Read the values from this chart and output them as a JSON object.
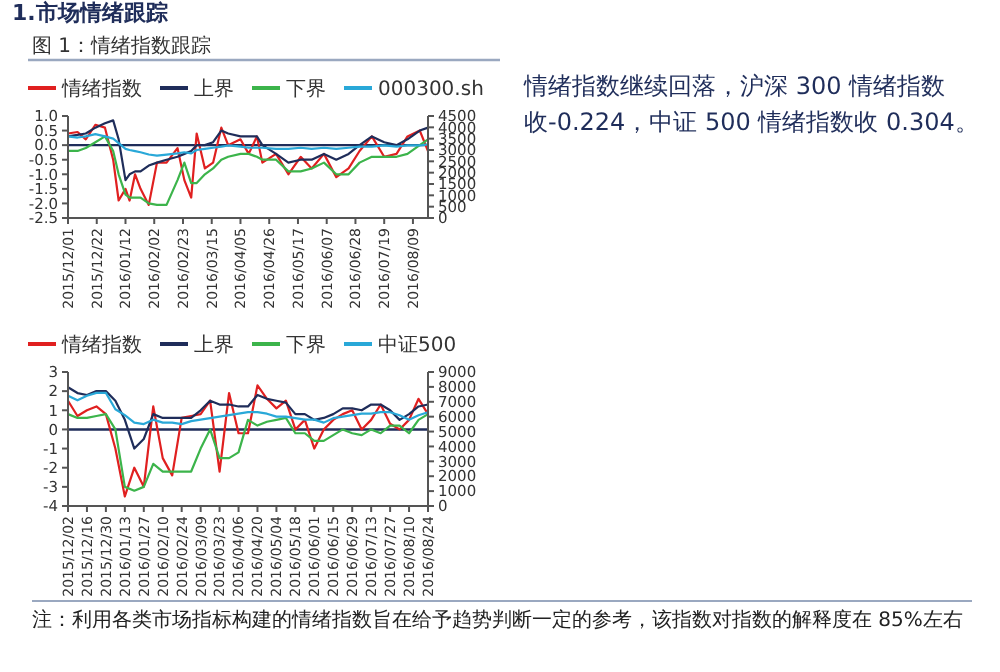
{
  "chart_data": [
    {
      "type": "other",
      "title": "1.市场情绪跟踪"
    },
    {
      "type": "line",
      "title": "图 1：情绪指数跟踪",
      "legend": "top",
      "grid": false,
      "marker": "none",
      "line_style": "solid",
      "x": [
        "2015-12-01",
        "2015-12-08",
        "2015-12-14",
        "2015-12-21",
        "2015-12-28",
        "2016-01-03",
        "2016-01-07",
        "2016-01-12",
        "2016-01-15",
        "2016-01-19",
        "2016-01-23",
        "2016-01-29",
        "2016-02-04",
        "2016-02-11",
        "2016-02-19",
        "2016-02-24",
        "2016-02-29",
        "2016-03-04",
        "2016-03-10",
        "2016-03-16",
        "2016-03-22",
        "2016-03-27",
        "2016-04-05",
        "2016-04-11",
        "2016-04-17",
        "2016-04-21",
        "2016-05-01",
        "2016-05-10",
        "2016-05-19",
        "2016-05-27",
        "2016-06-05",
        "2016-06-14",
        "2016-06-23",
        "2016-07-01",
        "2016-07-10",
        "2016-07-19",
        "2016-07-28",
        "2016-08-05",
        "2016-08-14",
        "2016-08-20"
      ],
      "xlim": [
        "2015-12-01",
        "2016-08-20"
      ],
      "xticks": [
        {
          "value": "2015-12-01",
          "label": "2015/12/01"
        },
        {
          "value": "2015-12-22",
          "label": "2015/12/22"
        },
        {
          "value": "2016-01-12",
          "label": "2016/01/12"
        },
        {
          "value": "2016-02-02",
          "label": "2016/02/02"
        },
        {
          "value": "2016-02-23",
          "label": "2016/02/23"
        },
        {
          "value": "2016-03-15",
          "label": "2016/03/15"
        },
        {
          "value": "2016-04-05",
          "label": "2016/04/05"
        },
        {
          "value": "2016-04-26",
          "label": "2016/04/26"
        },
        {
          "value": "2016-05-17",
          "label": "2016/05/17"
        },
        {
          "value": "2016-06-07",
          "label": "2016/06/07"
        },
        {
          "value": "2016-06-28",
          "label": "2016/06/28"
        },
        {
          "value": "2016-07-19",
          "label": "2016/07/19"
        },
        {
          "value": "2016-08-09",
          "label": "2016/08/09"
        }
      ],
      "ylim": [
        -2.5,
        1
      ],
      "yticks": [
        {
          "value": -2.5,
          "label": "-2.5"
        },
        {
          "value": -2,
          "label": "-2.0"
        },
        {
          "value": -1.5,
          "label": "-1.5"
        },
        {
          "value": -1,
          "label": "-1.0"
        },
        {
          "value": -0.5,
          "label": "-0.5"
        },
        {
          "value": 0,
          "label": "0.0"
        },
        {
          "value": 0.5,
          "label": "0.5"
        },
        {
          "value": 1,
          "label": "1.0"
        }
      ],
      "y2lim": [
        0,
        4500
      ],
      "y2ticks": [
        0,
        500,
        1000,
        1500,
        2000,
        2500,
        3000,
        3500,
        4000,
        4500
      ],
      "ref_lines": [
        {
          "axis": "y",
          "value": 0,
          "color": "#1f2d5a"
        }
      ],
      "series": [
        {
          "name": "情绪指数",
          "color": "#e02020",
          "values": [
            0.4,
            0.45,
            0.2,
            0.7,
            0.6,
            -0.5,
            -1.9,
            -1.5,
            -1.9,
            -1.0,
            -1.5,
            -2.05,
            -0.6,
            -0.6,
            -0.1,
            -1.2,
            -1.8,
            0.4,
            -0.8,
            -0.6,
            0.6,
            0.0,
            0.2,
            -0.3,
            0.3,
            -0.6,
            -0.3,
            -1.0,
            -0.4,
            -0.8,
            -0.3,
            -1.1,
            -0.8,
            -0.2,
            0.3,
            -0.4,
            -0.3,
            0.3,
            0.5,
            -0.2
          ]
        },
        {
          "name": "上界",
          "color": "#1f2d5a",
          "values": [
            0.3,
            0.35,
            0.4,
            0.6,
            0.75,
            0.85,
            0.2,
            -1.2,
            -1.0,
            -0.9,
            -0.9,
            -0.7,
            -0.6,
            -0.5,
            -0.4,
            -0.3,
            -0.2,
            0.0,
            0.0,
            0.1,
            0.5,
            0.4,
            0.3,
            0.3,
            0.3,
            0.0,
            -0.3,
            -0.6,
            -0.5,
            -0.5,
            -0.3,
            -0.5,
            -0.3,
            0.0,
            0.3,
            0.1,
            0.0,
            0.2,
            0.5,
            0.6
          ]
        },
        {
          "name": "下界",
          "color": "#3cb44b",
          "values": [
            -0.2,
            -0.2,
            -0.1,
            0.1,
            0.3,
            -0.2,
            -1.0,
            -1.7,
            -1.8,
            -1.8,
            -1.8,
            -2.0,
            -2.05,
            -2.05,
            -1.2,
            -0.6,
            -1.3,
            -1.3,
            -1.0,
            -0.8,
            -0.5,
            -0.4,
            -0.3,
            -0.3,
            -0.4,
            -0.5,
            -0.5,
            -0.9,
            -0.9,
            -0.8,
            -0.6,
            -1.0,
            -1.0,
            -0.6,
            -0.4,
            -0.4,
            -0.4,
            -0.3,
            0.0,
            0.2
          ]
        },
        {
          "name": "000300.sh",
          "color": "#29a8d8",
          "axis": "y2",
          "values": [
            3600,
            3550,
            3600,
            3700,
            3600,
            3500,
            3300,
            3050,
            3000,
            2950,
            2900,
            2800,
            2750,
            2800,
            2850,
            2900,
            2850,
            3000,
            3050,
            3100,
            3150,
            3200,
            3150,
            3100,
            3100,
            3100,
            3050,
            3050,
            3100,
            3050,
            3100,
            3050,
            3100,
            3150,
            3150,
            3200,
            3150,
            3200,
            3200,
            3250
          ]
        }
      ]
    },
    {
      "type": "other",
      "annotations": [
        "情绪指数继续回落，沪深 300 情绪指数收-0.224，中证 500 情绪指数收 0.304。"
      ]
    },
    {
      "type": "line",
      "legend": "top",
      "grid": false,
      "marker": "none",
      "line_style": "solid",
      "x": [
        "2015-12-02",
        "2015-12-09",
        "2015-12-16",
        "2015-12-23",
        "2015-12-30",
        "2016-01-06",
        "2016-01-13",
        "2016-01-20",
        "2016-01-27",
        "2016-02-03",
        "2016-02-10",
        "2016-02-17",
        "2016-02-24",
        "2016-03-02",
        "2016-03-09",
        "2016-03-16",
        "2016-03-23",
        "2016-03-30",
        "2016-04-06",
        "2016-04-13",
        "2016-04-20",
        "2016-04-27",
        "2016-05-04",
        "2016-05-11",
        "2016-05-18",
        "2016-05-25",
        "2016-06-01",
        "2016-06-08",
        "2016-06-15",
        "2016-06-22",
        "2016-06-29",
        "2016-07-06",
        "2016-07-13",
        "2016-07-20",
        "2016-07-27",
        "2016-08-03",
        "2016-08-10",
        "2016-08-17",
        "2016-08-24"
      ],
      "xlim": [
        "2015-12-02",
        "2016-08-24"
      ],
      "xticks": [
        {
          "value": "2015-12-02",
          "label": "2015/12/02"
        },
        {
          "value": "2015-12-16",
          "label": "2015/12/16"
        },
        {
          "value": "2015-12-30",
          "label": "2015/12/30"
        },
        {
          "value": "2016-01-13",
          "label": "2016/01/13"
        },
        {
          "value": "2016-01-27",
          "label": "2016/01/27"
        },
        {
          "value": "2016-02-10",
          "label": "2016/02/10"
        },
        {
          "value": "2016-02-24",
          "label": "2016/02/24"
        },
        {
          "value": "2016-03-09",
          "label": "2016/03/09"
        },
        {
          "value": "2016-03-23",
          "label": "2016/03/23"
        },
        {
          "value": "2016-04-06",
          "label": "2016/04/06"
        },
        {
          "value": "2016-04-20",
          "label": "2016/04/20"
        },
        {
          "value": "2016-05-04",
          "label": "2016/05/04"
        },
        {
          "value": "2016-05-18",
          "label": "2016/05/18"
        },
        {
          "value": "2016-06-01",
          "label": "2016/06/01"
        },
        {
          "value": "2016-06-15",
          "label": "2016/06/15"
        },
        {
          "value": "2016-06-29",
          "label": "2016/06/29"
        },
        {
          "value": "2016-07-13",
          "label": "2016/07/13"
        },
        {
          "value": "2016-07-27",
          "label": "2016/07/27"
        },
        {
          "value": "2016-08-10",
          "label": "2016/08/10"
        },
        {
          "value": "2016-08-24",
          "label": "2016/08/24"
        }
      ],
      "ylim": [
        -4,
        3
      ],
      "yticks": [
        -4,
        -3,
        -2,
        -1,
        0,
        1,
        2,
        3
      ],
      "y2lim": [
        0,
        9000
      ],
      "y2ticks": [
        0,
        1000,
        2000,
        3000,
        4000,
        5000,
        6000,
        7000,
        8000,
        9000
      ],
      "ref_lines": [
        {
          "axis": "y",
          "value": 0,
          "color": "#1f2d5a"
        }
      ],
      "series": [
        {
          "name": "情绪指数",
          "color": "#e02020",
          "values": [
            1.5,
            0.7,
            1.0,
            1.2,
            0.8,
            -1.0,
            -3.5,
            -2.0,
            -3.0,
            1.2,
            -1.5,
            -2.4,
            0.6,
            0.7,
            0.8,
            1.5,
            -2.2,
            1.9,
            -0.2,
            -0.2,
            2.3,
            1.6,
            1.1,
            1.5,
            0.0,
            0.5,
            -1.0,
            0.0,
            0.5,
            0.8,
            1.0,
            0.0,
            0.5,
            1.3,
            0.3,
            0.0,
            0.5,
            1.6,
            0.8
          ]
        },
        {
          "name": "上界",
          "color": "#1f2d5a",
          "values": [
            2.2,
            1.9,
            1.8,
            2.0,
            2.0,
            1.5,
            0.5,
            -1.0,
            -0.5,
            0.8,
            0.6,
            0.6,
            0.6,
            0.6,
            1.0,
            1.5,
            1.3,
            1.3,
            1.2,
            1.2,
            1.8,
            1.6,
            1.5,
            1.4,
            0.8,
            0.8,
            0.5,
            0.6,
            0.8,
            1.1,
            1.1,
            1.0,
            1.3,
            1.3,
            1.0,
            0.5,
            0.8,
            1.2,
            1.3
          ]
        },
        {
          "name": "下界",
          "color": "#3cb44b",
          "values": [
            0.8,
            0.6,
            0.6,
            0.7,
            0.8,
            0.0,
            -3.0,
            -3.2,
            -3.0,
            -1.8,
            -2.2,
            -2.2,
            -2.2,
            -2.2,
            -1.0,
            0.0,
            -1.5,
            -1.5,
            -1.2,
            0.5,
            0.2,
            0.4,
            0.5,
            0.6,
            -0.2,
            -0.2,
            -0.6,
            -0.6,
            -0.3,
            0.0,
            -0.2,
            -0.3,
            0.0,
            -0.2,
            0.2,
            0.2,
            -0.2,
            0.5,
            0.8
          ]
        },
        {
          "name": "中证500",
          "color": "#29a8d8",
          "axis": "y2",
          "values": [
            7400,
            7100,
            7400,
            7600,
            7600,
            6500,
            6100,
            5600,
            5500,
            5800,
            5600,
            5600,
            5500,
            5700,
            5800,
            5900,
            6000,
            6100,
            6200,
            6300,
            6300,
            6200,
            6000,
            6000,
            5900,
            5800,
            5800,
            5600,
            5900,
            6000,
            6100,
            6200,
            6200,
            6300,
            6300,
            6100,
            5800,
            6100,
            6300
          ]
        }
      ],
      "annotations": [
        "注：利用各类市场指标构建的情绪指数旨在给予趋势判断一定的参考，该指数对指数的解释度在 85%左右"
      ]
    }
  ]
}
